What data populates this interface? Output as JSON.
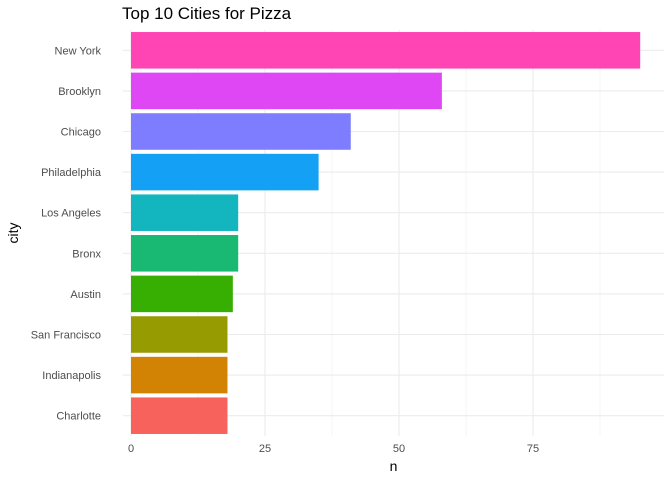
{
  "chart_data": {
    "type": "bar",
    "orientation": "horizontal",
    "title": "Top 10 Cities for Pizza",
    "xlabel": "n",
    "ylabel": "city",
    "categories": [
      "New York",
      "Brooklyn",
      "Chicago",
      "Philadelphia",
      "Los Angeles",
      "Bronx",
      "Austin",
      "San Francisco",
      "Indianapolis",
      "Charlotte"
    ],
    "values": [
      95,
      58,
      41,
      35,
      20,
      20,
      19,
      18,
      18,
      18
    ],
    "colors": [
      "#FF45B4",
      "#DF47F5",
      "#7E7DFF",
      "#14A1F5",
      "#13B6BE",
      "#19B873",
      "#37AF02",
      "#979B02",
      "#D28303",
      "#F8625C"
    ],
    "xlim": [
      0,
      96
    ],
    "xticks": [
      0,
      25,
      50,
      75
    ],
    "xtick_labels": [
      "0",
      "25",
      "50",
      "75"
    ],
    "grid": true,
    "legend": "none"
  }
}
